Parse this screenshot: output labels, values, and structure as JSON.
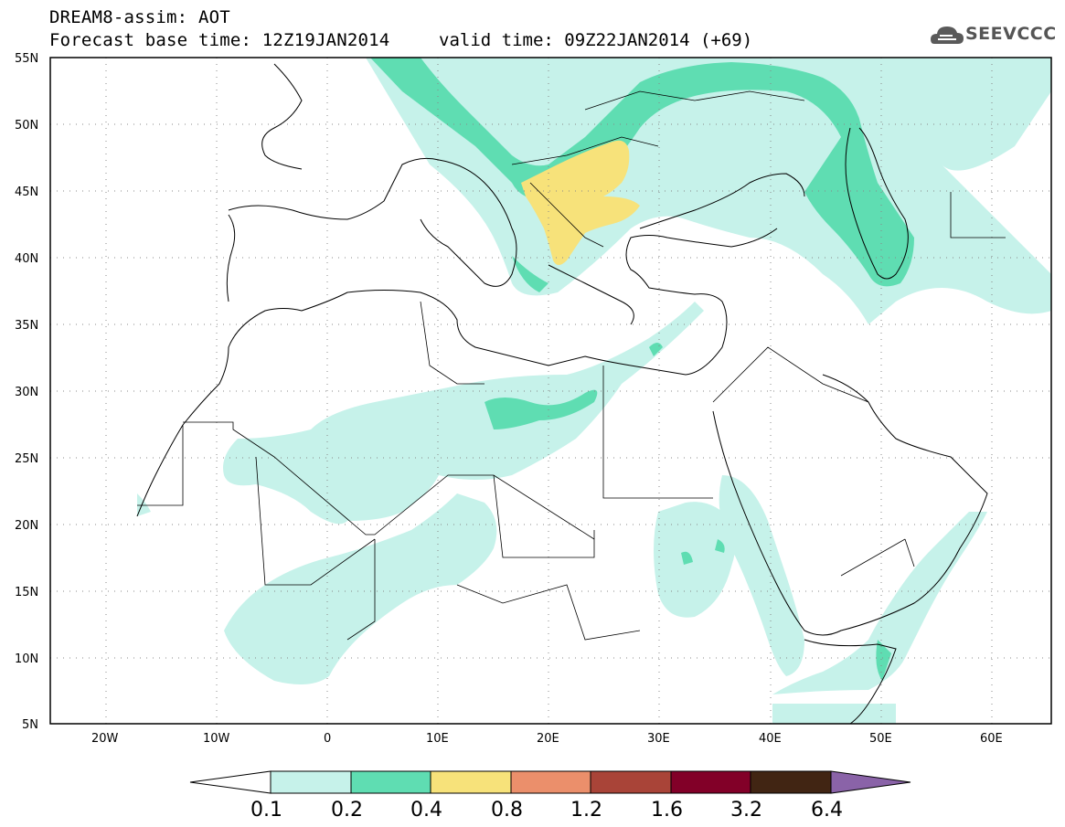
{
  "header": {
    "line1": "DREAM8-assim: AOT",
    "line2": "Forecast base time: 12Z19JAN2014",
    "valid": "valid time: 09Z22JAN2014 (+69)",
    "logo": "SEEVCCC"
  },
  "map": {
    "lat_labels": [
      "55N",
      "50N",
      "45N",
      "40N",
      "35N",
      "30N",
      "25N",
      "20N",
      "15N",
      "10N",
      "5N"
    ],
    "lon_labels": [
      "20W",
      "10W",
      "0",
      "10E",
      "20E",
      "30E",
      "40E",
      "50E",
      "60E"
    ],
    "lat_range": [
      5,
      55
    ],
    "lon_range": [
      -25,
      65
    ],
    "grid": "dotted"
  },
  "colorbar": {
    "labels": [
      "0.1",
      "0.2",
      "0.4",
      "0.8",
      "1.2",
      "1.6",
      "3.2",
      "6.4"
    ],
    "colors": [
      "#ffffff",
      "#c6f2ea",
      "#5fddb2",
      "#f7e27a",
      "#eb8f6b",
      "#a94438",
      "#820028",
      "#412513",
      "#8a63a8"
    ]
  }
}
